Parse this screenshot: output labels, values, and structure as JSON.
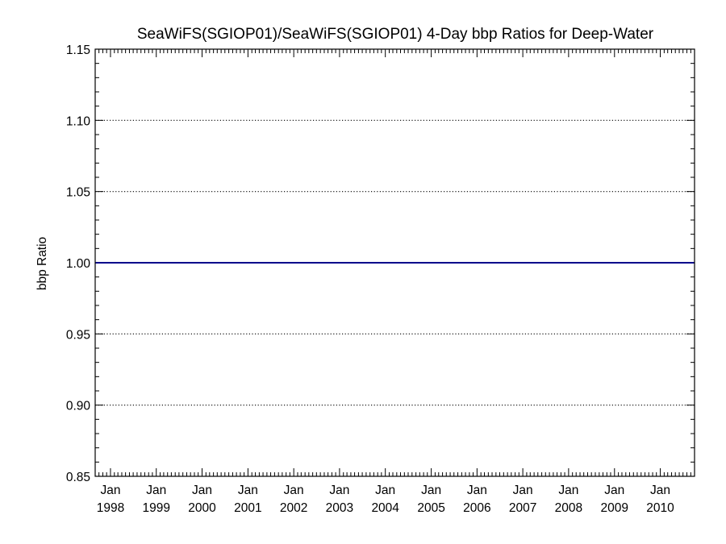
{
  "chart_data": {
    "type": "line",
    "title": "SeaWiFS(SGIOP01)/SeaWiFS(SGIOP01) 4-Day bbp Ratios for Deep-Water",
    "xlabel": "",
    "ylabel": "bbp Ratio",
    "ylim": [
      0.85,
      1.15
    ],
    "y_ticks": [
      0.85,
      0.9,
      0.95,
      1.0,
      1.05,
      1.1,
      1.15
    ],
    "y_tick_labels": [
      "0.85",
      "0.90",
      "0.95",
      "1.00",
      "1.05",
      "1.10",
      "1.15"
    ],
    "y_gridlines": [
      0.9,
      0.95,
      1.05,
      1.1
    ],
    "grid_style": "dotted",
    "xlim": [
      "1997-09-01",
      "2010-10-01"
    ],
    "x_ticks": [
      "1998-01-01",
      "1999-01-01",
      "2000-01-01",
      "2001-01-01",
      "2002-01-01",
      "2003-01-01",
      "2004-01-01",
      "2005-01-01",
      "2006-01-01",
      "2007-01-01",
      "2008-01-01",
      "2009-01-01",
      "2010-01-01"
    ],
    "x_tick_labels": [
      [
        "Jan",
        "1998"
      ],
      [
        "Jan",
        "1999"
      ],
      [
        "Jan",
        "2000"
      ],
      [
        "Jan",
        "2001"
      ],
      [
        "Jan",
        "2002"
      ],
      [
        "Jan",
        "2003"
      ],
      [
        "Jan",
        "2004"
      ],
      [
        "Jan",
        "2005"
      ],
      [
        "Jan",
        "2006"
      ],
      [
        "Jan",
        "2007"
      ],
      [
        "Jan",
        "2008"
      ],
      [
        "Jan",
        "2009"
      ],
      [
        "Jan",
        "2010"
      ]
    ],
    "series": [
      {
        "color": "#00008b",
        "x": [
          "1997-09-01",
          "2010-10-01"
        ],
        "y": [
          1.0,
          1.0
        ]
      }
    ]
  }
}
